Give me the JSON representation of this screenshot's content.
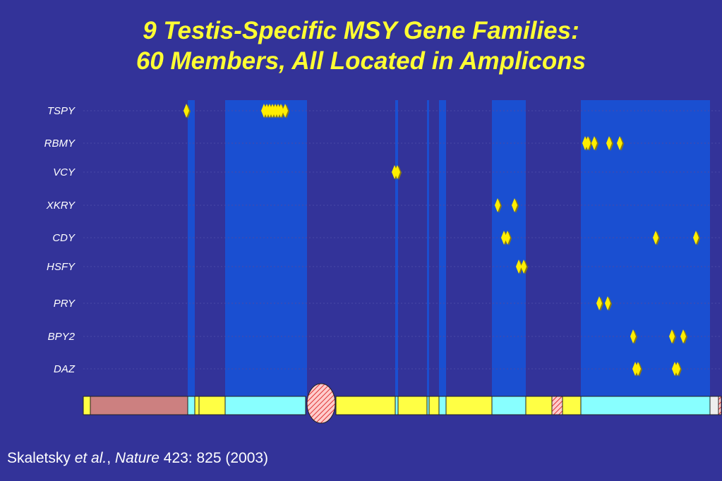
{
  "title": {
    "line1": "9 Testis-Specific MSY Gene Families:",
    "line2": "60 Members, All Located in Amplicons"
  },
  "colors": {
    "background": "#333399",
    "title": "#ffff33",
    "amplicon_band": "#1a4fd1",
    "marker": "#ffee00",
    "marker_shadow": "#8a7a10",
    "label": "#ffffff",
    "chrom_yellow": "#ffff44",
    "chrom_cyan": "#88ffff",
    "chrom_pink": "#cc8080",
    "chrom_white": "#eeeeee",
    "centromere_fill": "#ffcccc",
    "centromere_hatch": "#dd3333"
  },
  "gene_families": [
    {
      "name": "TSPY",
      "markers": [
        264,
        374,
        378,
        382,
        386,
        390,
        394,
        398,
        404
      ]
    },
    {
      "name": "RBMY",
      "markers": [
        829,
        833,
        842,
        863,
        878
      ]
    },
    {
      "name": "VCY",
      "markers": [
        559,
        563
      ]
    },
    {
      "name": "XKRY",
      "markers": [
        705,
        729
      ]
    },
    {
      "name": "CDY",
      "markers": [
        714,
        719,
        929,
        986
      ]
    },
    {
      "name": "HSFY",
      "markers": [
        735,
        742
      ]
    },
    {
      "name": "PRY",
      "markers": [
        849,
        861
      ]
    },
    {
      "name": "BPY2",
      "markers": [
        897,
        952,
        968
      ]
    },
    {
      "name": "DAZ",
      "markers": [
        900,
        904,
        956,
        960
      ]
    }
  ],
  "citation": {
    "author": "Skaletsky ",
    "etal": "et al.",
    "sep": ", ",
    "journal": "Nature",
    "ref": " 423: 825 (2003)"
  }
}
